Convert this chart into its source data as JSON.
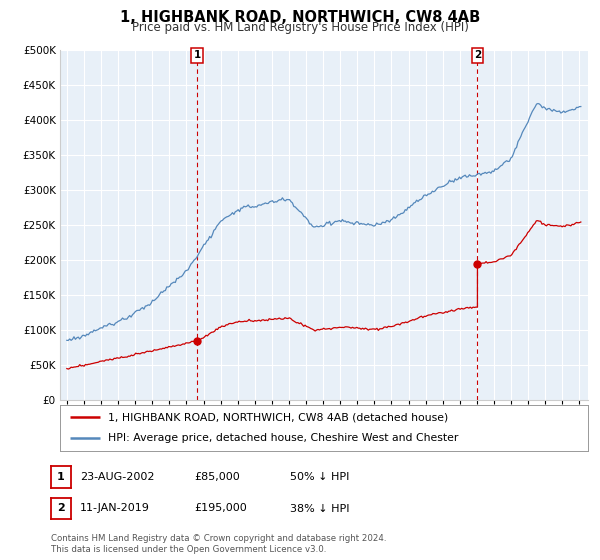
{
  "title": "1, HIGHBANK ROAD, NORTHWICH, CW8 4AB",
  "subtitle": "Price paid vs. HM Land Registry's House Price Index (HPI)",
  "legend_label_red": "1, HIGHBANK ROAD, NORTHWICH, CW8 4AB (detached house)",
  "legend_label_blue": "HPI: Average price, detached house, Cheshire West and Chester",
  "table_rows": [
    {
      "num": "1",
      "date": "23-AUG-2002",
      "price": "£85,000",
      "pct": "50% ↓ HPI"
    },
    {
      "num": "2",
      "date": "11-JAN-2019",
      "price": "£195,000",
      "pct": "38% ↓ HPI"
    }
  ],
  "footer": "Contains HM Land Registry data © Crown copyright and database right 2024.\nThis data is licensed under the Open Government Licence v3.0.",
  "sale1_x": 2002.64,
  "sale1_y": 85000,
  "sale2_x": 2019.03,
  "sale2_y": 195000,
  "red_color": "#cc0000",
  "blue_color": "#5588bb",
  "blue_fill": "#ddeeff",
  "vline_color": "#cc0000",
  "background_color": "#ffffff",
  "chart_bg": "#e8f0f8",
  "grid_color": "#ffffff",
  "ylim": [
    0,
    500000
  ],
  "xlim_start": 1994.6,
  "xlim_end": 2025.5
}
